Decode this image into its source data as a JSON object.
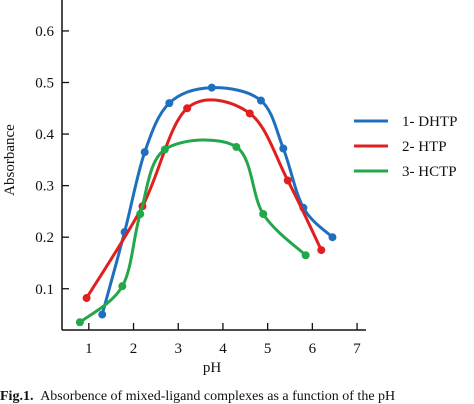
{
  "chart_data": {
    "type": "line",
    "xlabel": "pH",
    "ylabel": "Absorbance",
    "xlim": [
      0.4,
      7.2
    ],
    "ylim": [
      0.02,
      0.66
    ],
    "x_ticks": [
      1,
      2,
      3,
      4,
      5,
      6,
      7
    ],
    "y_ticks": [
      0.1,
      0.2,
      0.3,
      0.4,
      0.5,
      0.6
    ],
    "y_tick_labels": [
      "0.1",
      "0.2",
      "0.3",
      "0.4",
      "0.5",
      "0.6"
    ],
    "x_tick_labels": [
      "1",
      "2",
      "3",
      "4",
      "5",
      "6",
      "7"
    ],
    "grid": false,
    "legend_position": "right",
    "series": [
      {
        "name": "1- DHTP",
        "color": "#1f6fbf",
        "points": [
          [
            1.3,
            0.05
          ],
          [
            1.8,
            0.21
          ],
          [
            2.25,
            0.365
          ],
          [
            2.8,
            0.46
          ],
          [
            3.75,
            0.49
          ],
          [
            4.85,
            0.465
          ],
          [
            5.35,
            0.372
          ],
          [
            5.8,
            0.257
          ],
          [
            6.45,
            0.2
          ]
        ]
      },
      {
        "name": "2- HTP",
        "color": "#e02020",
        "points": [
          [
            0.95,
            0.082
          ],
          [
            2.2,
            0.26
          ],
          [
            3.2,
            0.45
          ],
          [
            4.6,
            0.44
          ],
          [
            5.45,
            0.31
          ],
          [
            6.2,
            0.175
          ]
        ]
      },
      {
        "name": "3- HCTP",
        "color": "#22a84a",
        "points": [
          [
            0.8,
            0.035
          ],
          [
            1.75,
            0.105
          ],
          [
            2.15,
            0.245
          ],
          [
            2.7,
            0.37
          ],
          [
            4.3,
            0.375
          ],
          [
            4.9,
            0.245
          ],
          [
            5.85,
            0.165
          ]
        ]
      }
    ]
  },
  "caption": {
    "label": "Fig.1.",
    "text": "Absorbence of mixed-ligand complexes as a function of the pH"
  }
}
